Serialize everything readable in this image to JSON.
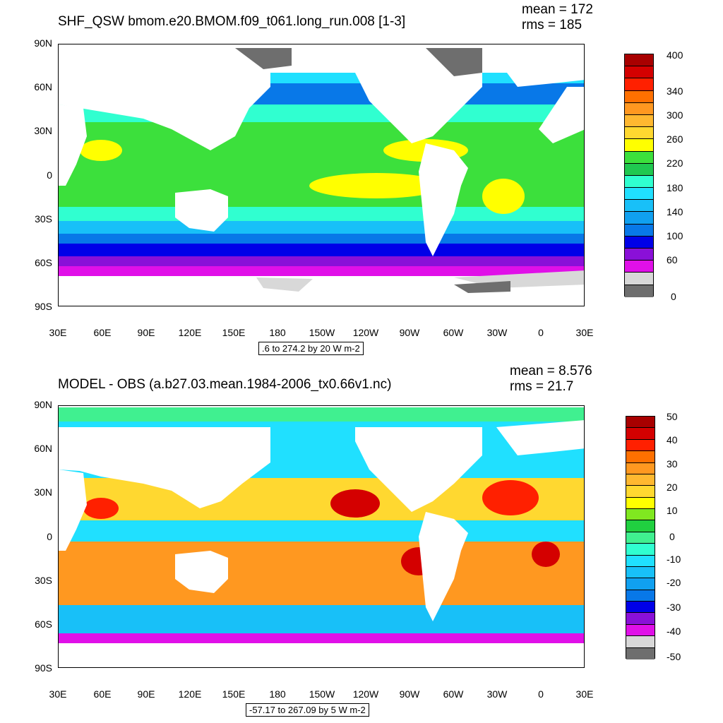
{
  "panels": [
    {
      "title": "SHF_QSW bmom.e20.BMOM.f09_t061.long_run.008 [1-3]",
      "mean": "mean = 172",
      "rms": "rms = 185",
      "range_note": ".6 to 274.2 by 20 W m-2",
      "colorbar": {
        "labels": [
          "400",
          "340",
          "300",
          "260",
          "220",
          "180",
          "140",
          "100",
          "60",
          "0"
        ],
        "colors": [
          "#a80000",
          "#d40000",
          "#ff2000",
          "#ff7000",
          "#ff9820",
          "#ffb830",
          "#ffd830",
          "#ffff00",
          "#3ce03c",
          "#20c850",
          "#30ffd0",
          "#20e0ff",
          "#18c0f8",
          "#10a0f0",
          "#0878e8",
          "#0000e8",
          "#8a10d8",
          "#e010e8",
          "#d8d8d8",
          "#6e6e6e"
        ]
      }
    },
    {
      "title": "MODEL - OBS (a.b27.03.mean.1984-2006_tx0.66v1.nc)",
      "mean": "mean = 8.576",
      "rms": "rms = 21.7",
      "range_note": "-57.17 to 267.09 by 5 W m-2",
      "colorbar": {
        "labels": [
          "50",
          "40",
          "30",
          "20",
          "10",
          "0",
          "-10",
          "-20",
          "-30",
          "-40",
          "-50"
        ],
        "colors": [
          "#a80000",
          "#d40000",
          "#ff2000",
          "#ff7000",
          "#ff9820",
          "#ffb830",
          "#ffd830",
          "#ffff00",
          "#80e820",
          "#20d040",
          "#40f090",
          "#30ffd0",
          "#20e0ff",
          "#18c0f8",
          "#10a0f0",
          "#0878e8",
          "#0000e8",
          "#8a10d8",
          "#e010e8",
          "#d8d8d8",
          "#6e6e6e"
        ]
      }
    }
  ],
  "axes": {
    "y_ticks": [
      "90N",
      "60N",
      "30N",
      "0",
      "30S",
      "60S",
      "90S"
    ],
    "x_ticks": [
      "30E",
      "60E",
      "90E",
      "120E",
      "150E",
      "180",
      "150W",
      "120W",
      "90W",
      "60W",
      "30W",
      "0",
      "30E"
    ]
  },
  "colors": {
    "land_fill": "#ffffff",
    "ice_dark": "#6e6e6e",
    "ice_light": "#d8d8d8"
  }
}
